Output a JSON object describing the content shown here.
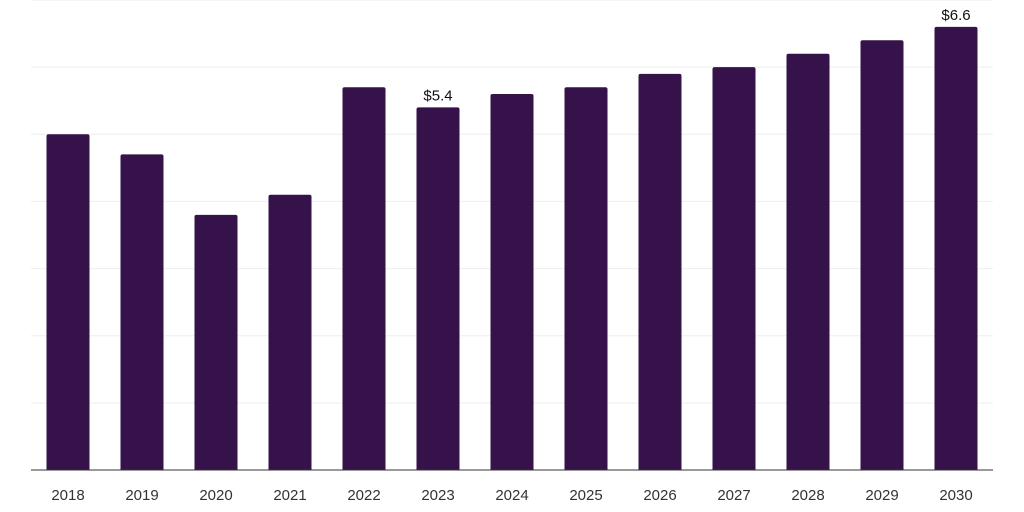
{
  "chart_data": {
    "type": "bar",
    "categories": [
      "2018",
      "2019",
      "2020",
      "2021",
      "2022",
      "2023",
      "2024",
      "2025",
      "2026",
      "2027",
      "2028",
      "2029",
      "2030"
    ],
    "values": [
      5.0,
      4.7,
      3.8,
      4.1,
      5.7,
      5.4,
      5.6,
      5.7,
      5.9,
      6.0,
      6.2,
      6.4,
      6.6
    ],
    "data_labels": [
      {
        "index": 5,
        "text": "$5.4"
      },
      {
        "index": 12,
        "text": "$6.6"
      }
    ],
    "title": "",
    "xlabel": "",
    "ylabel": "",
    "ylim": [
      0,
      7
    ],
    "grid": true,
    "legend": "none",
    "colors": {
      "bar": "#36124a",
      "grid": "#eeeeee",
      "axis": "#333333"
    }
  }
}
